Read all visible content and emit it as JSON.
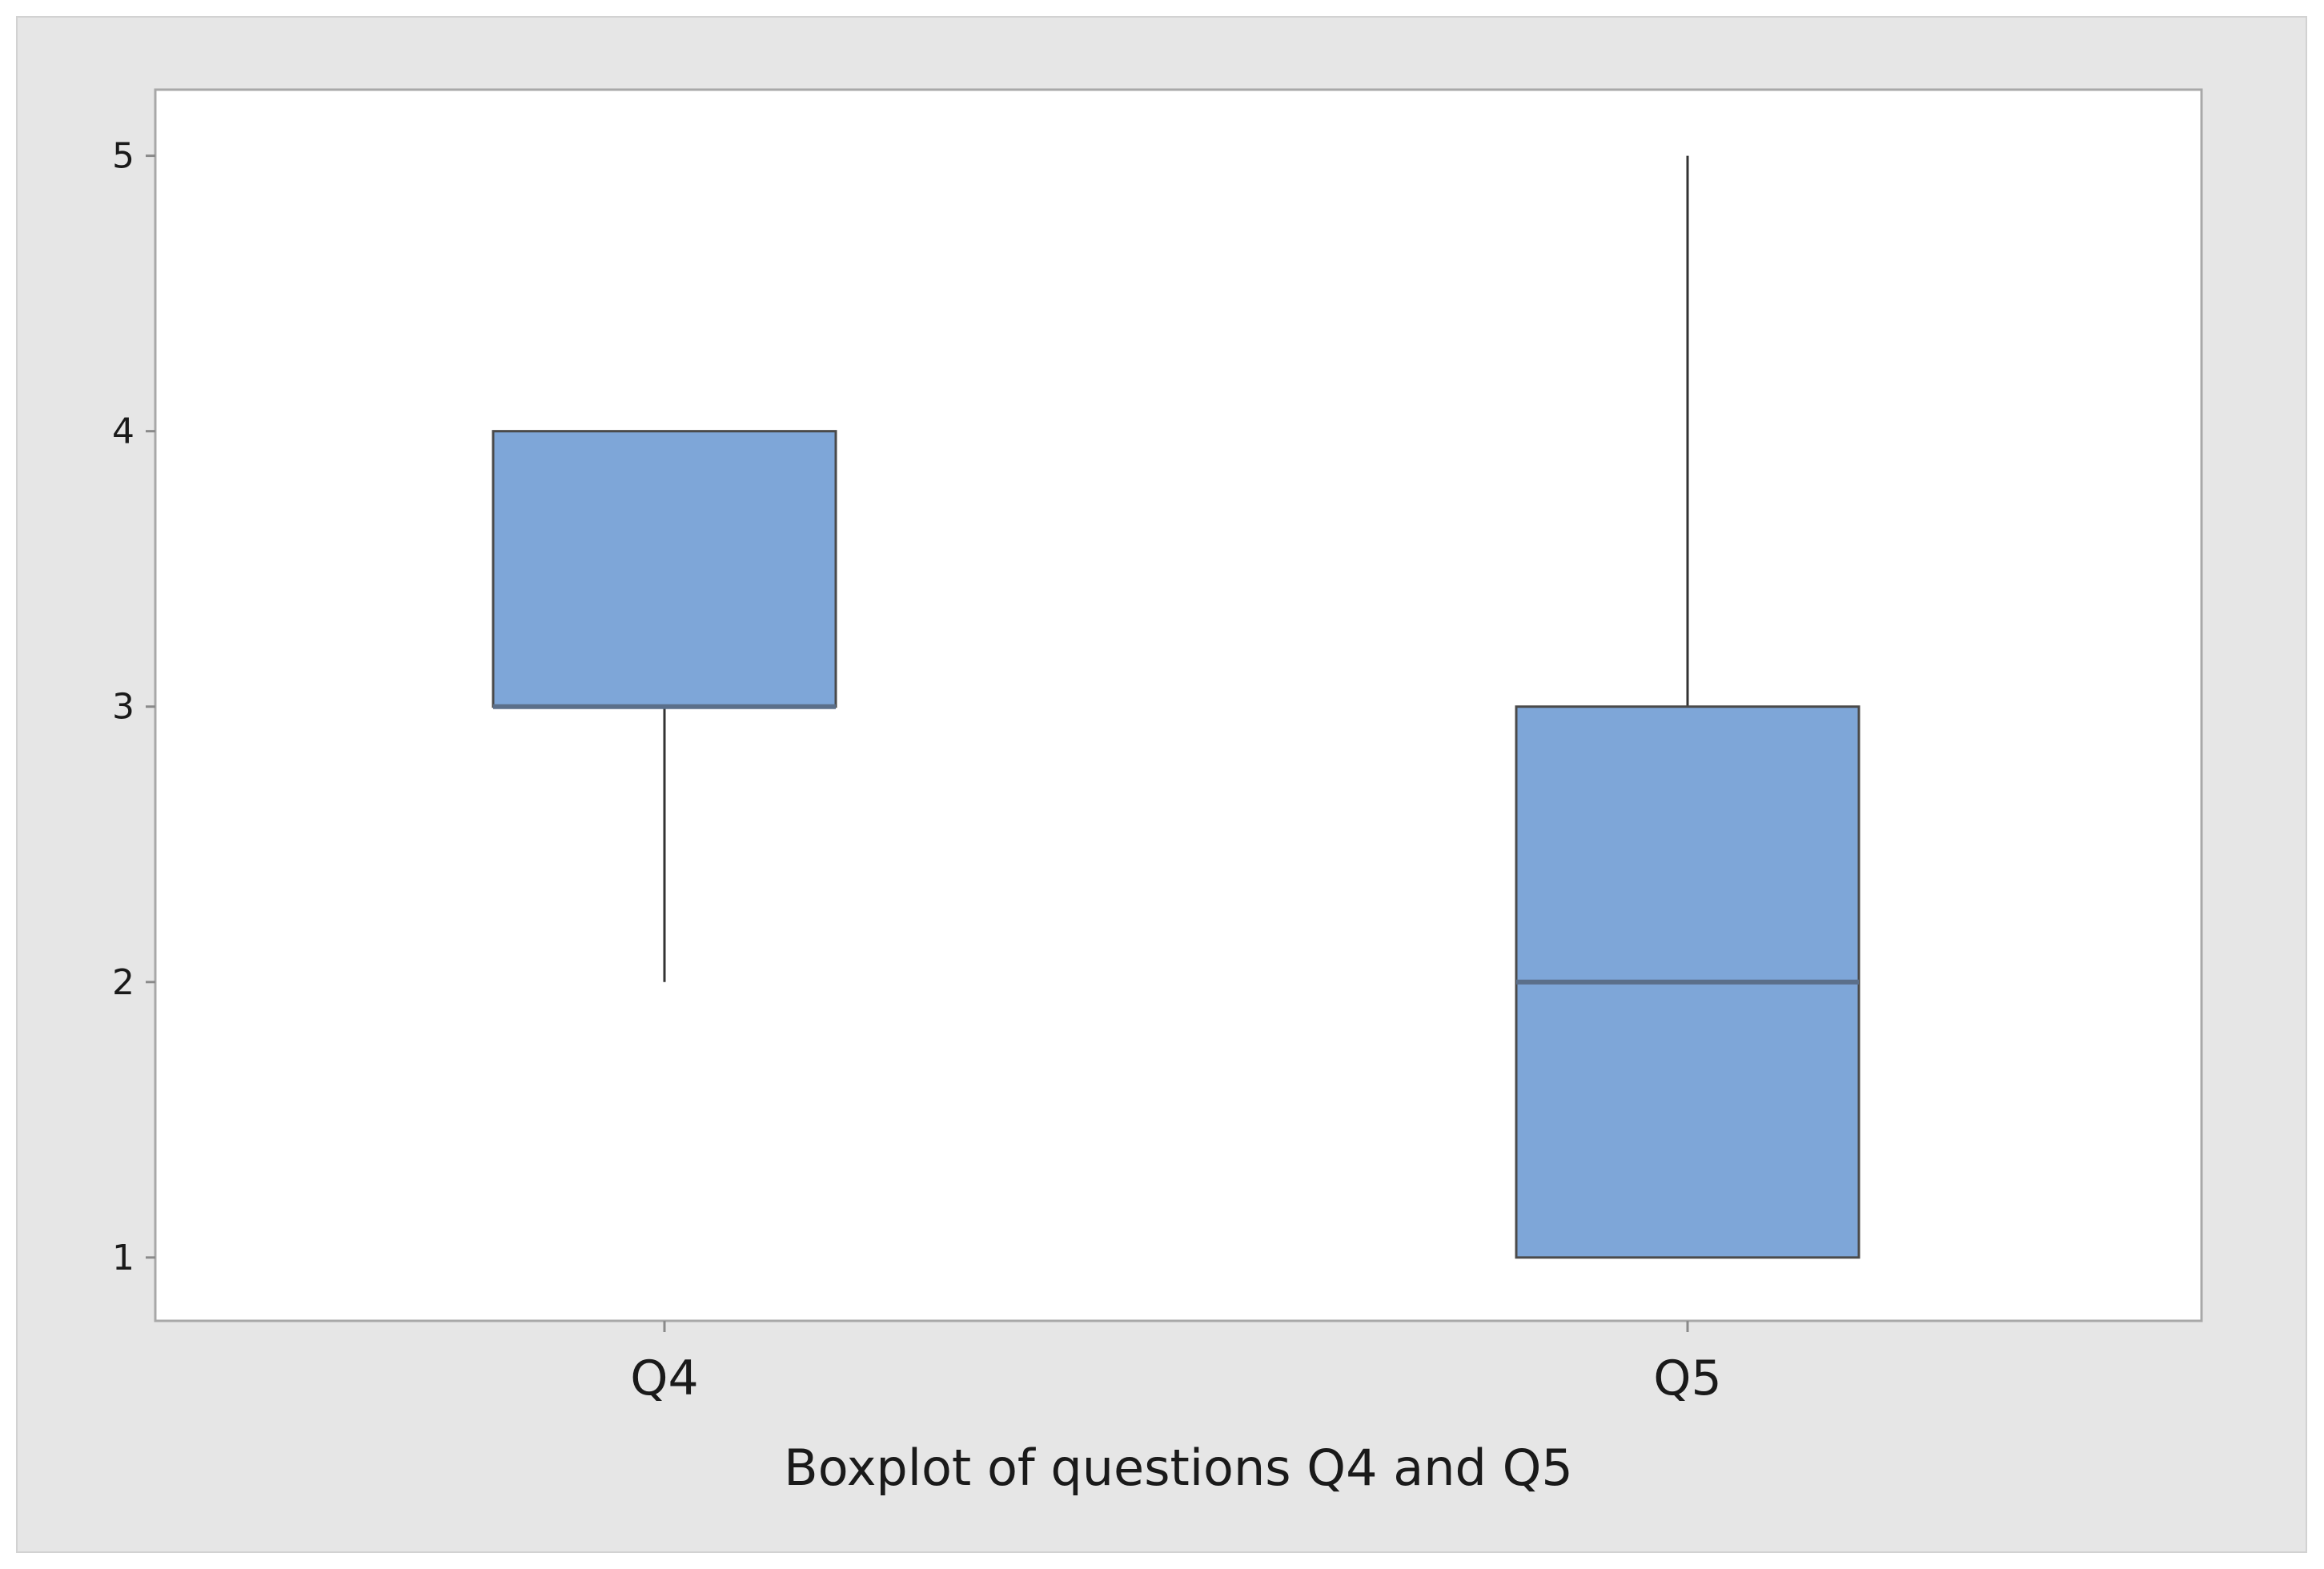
{
  "chart_data": {
    "type": "boxplot",
    "title": "Boxplot of questions Q4 and Q5",
    "xlabel": "",
    "ylabel": "",
    "categories": [
      "Q4",
      "Q5"
    ],
    "boxes": [
      {
        "category": "Q4",
        "whisker_low": 2,
        "q1": 3,
        "median": 3,
        "q3": 4,
        "whisker_high": 4
      },
      {
        "category": "Q5",
        "whisker_low": 1,
        "q1": 1,
        "median": 2,
        "q3": 3,
        "whisker_high": 5
      }
    ],
    "yticks": [
      "1",
      "2",
      "3",
      "4",
      "5"
    ],
    "ylim": [
      0.77,
      5.24
    ],
    "grid": false,
    "legend": "none",
    "colors": {
      "box_fill": "#7ea6d8",
      "box_stroke": "#4a4a4a",
      "median_line": "#5b6f8a",
      "whisker": "#333333",
      "frame_bg": "#e6e6e6",
      "plot_bg": "#ffffff",
      "plot_border": "#a8a8a8"
    }
  }
}
